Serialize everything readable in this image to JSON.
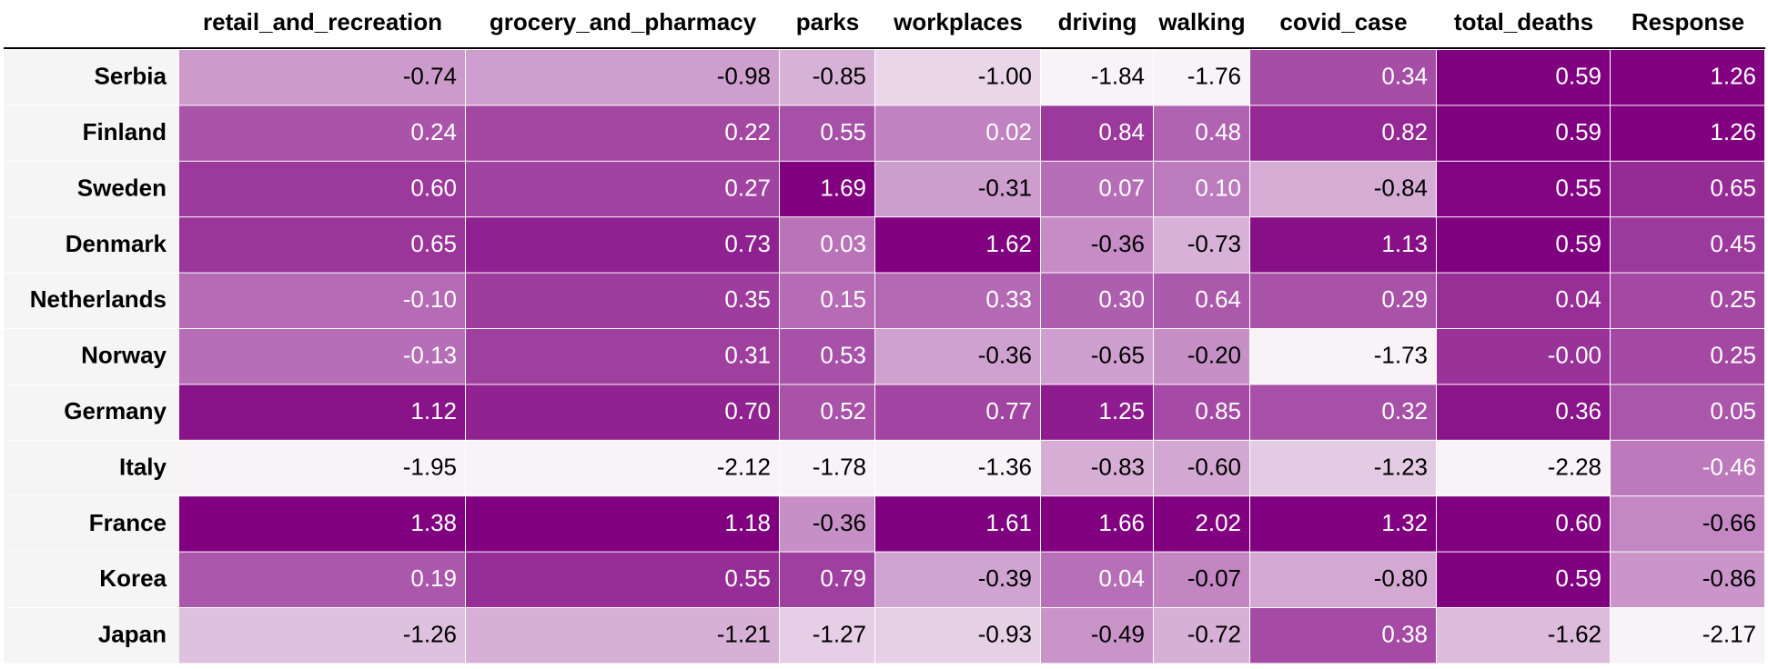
{
  "chart_data": {
    "type": "heatmap",
    "columns": [
      "retail_and_recreation",
      "grocery_and_pharmacy",
      "parks",
      "workplaces",
      "driving",
      "walking",
      "covid_case",
      "total_deaths",
      "Response"
    ],
    "rows": [
      "Serbia",
      "Finland",
      "Sweden",
      "Denmark",
      "Netherlands",
      "Norway",
      "Germany",
      "Italy",
      "France",
      "Korea",
      "Japan"
    ],
    "values": [
      [
        "-0.74",
        "-0.98",
        "-0.85",
        "-1.00",
        "-1.84",
        "-1.76",
        "0.34",
        "0.59",
        "1.26"
      ],
      [
        "0.24",
        "0.22",
        "0.55",
        "0.02",
        "0.84",
        "0.48",
        "0.82",
        "0.59",
        "1.26"
      ],
      [
        "0.60",
        "0.27",
        "1.69",
        "-0.31",
        "0.07",
        "0.10",
        "-0.84",
        "0.55",
        "0.65"
      ],
      [
        "0.65",
        "0.73",
        "0.03",
        "1.62",
        "-0.36",
        "-0.73",
        "1.13",
        "0.59",
        "0.45"
      ],
      [
        "-0.10",
        "0.35",
        "0.15",
        "0.33",
        "0.30",
        "0.64",
        "0.29",
        "0.04",
        "0.25"
      ],
      [
        "-0.13",
        "0.31",
        "0.53",
        "-0.36",
        "-0.65",
        "-0.20",
        "-1.73",
        "-0.00",
        "0.25"
      ],
      [
        "1.12",
        "0.70",
        "0.52",
        "0.77",
        "1.25",
        "0.85",
        "0.32",
        "0.36",
        "0.05"
      ],
      [
        "-1.95",
        "-2.12",
        "-1.78",
        "-1.36",
        "-0.83",
        "-0.60",
        "-1.23",
        "-2.28",
        "-0.46"
      ],
      [
        "1.38",
        "1.18",
        "-0.36",
        "1.61",
        "1.66",
        "2.02",
        "1.32",
        "0.60",
        "-0.66"
      ],
      [
        "0.19",
        "0.55",
        "0.79",
        "-0.39",
        "0.04",
        "-0.07",
        "-0.80",
        "0.59",
        "-0.86"
      ],
      [
        "-1.26",
        "-1.21",
        "-1.27",
        "-0.93",
        "-0.49",
        "-0.72",
        "0.38",
        "-1.62",
        "-2.17"
      ]
    ],
    "colormap": {
      "low": "#f7f3f7",
      "high": "#800080"
    },
    "text_colors": {
      "dark": "#000000",
      "light": "#ffffff"
    },
    "row_stripe_color": "#f5f5f5",
    "grid": false,
    "legend": "none"
  }
}
